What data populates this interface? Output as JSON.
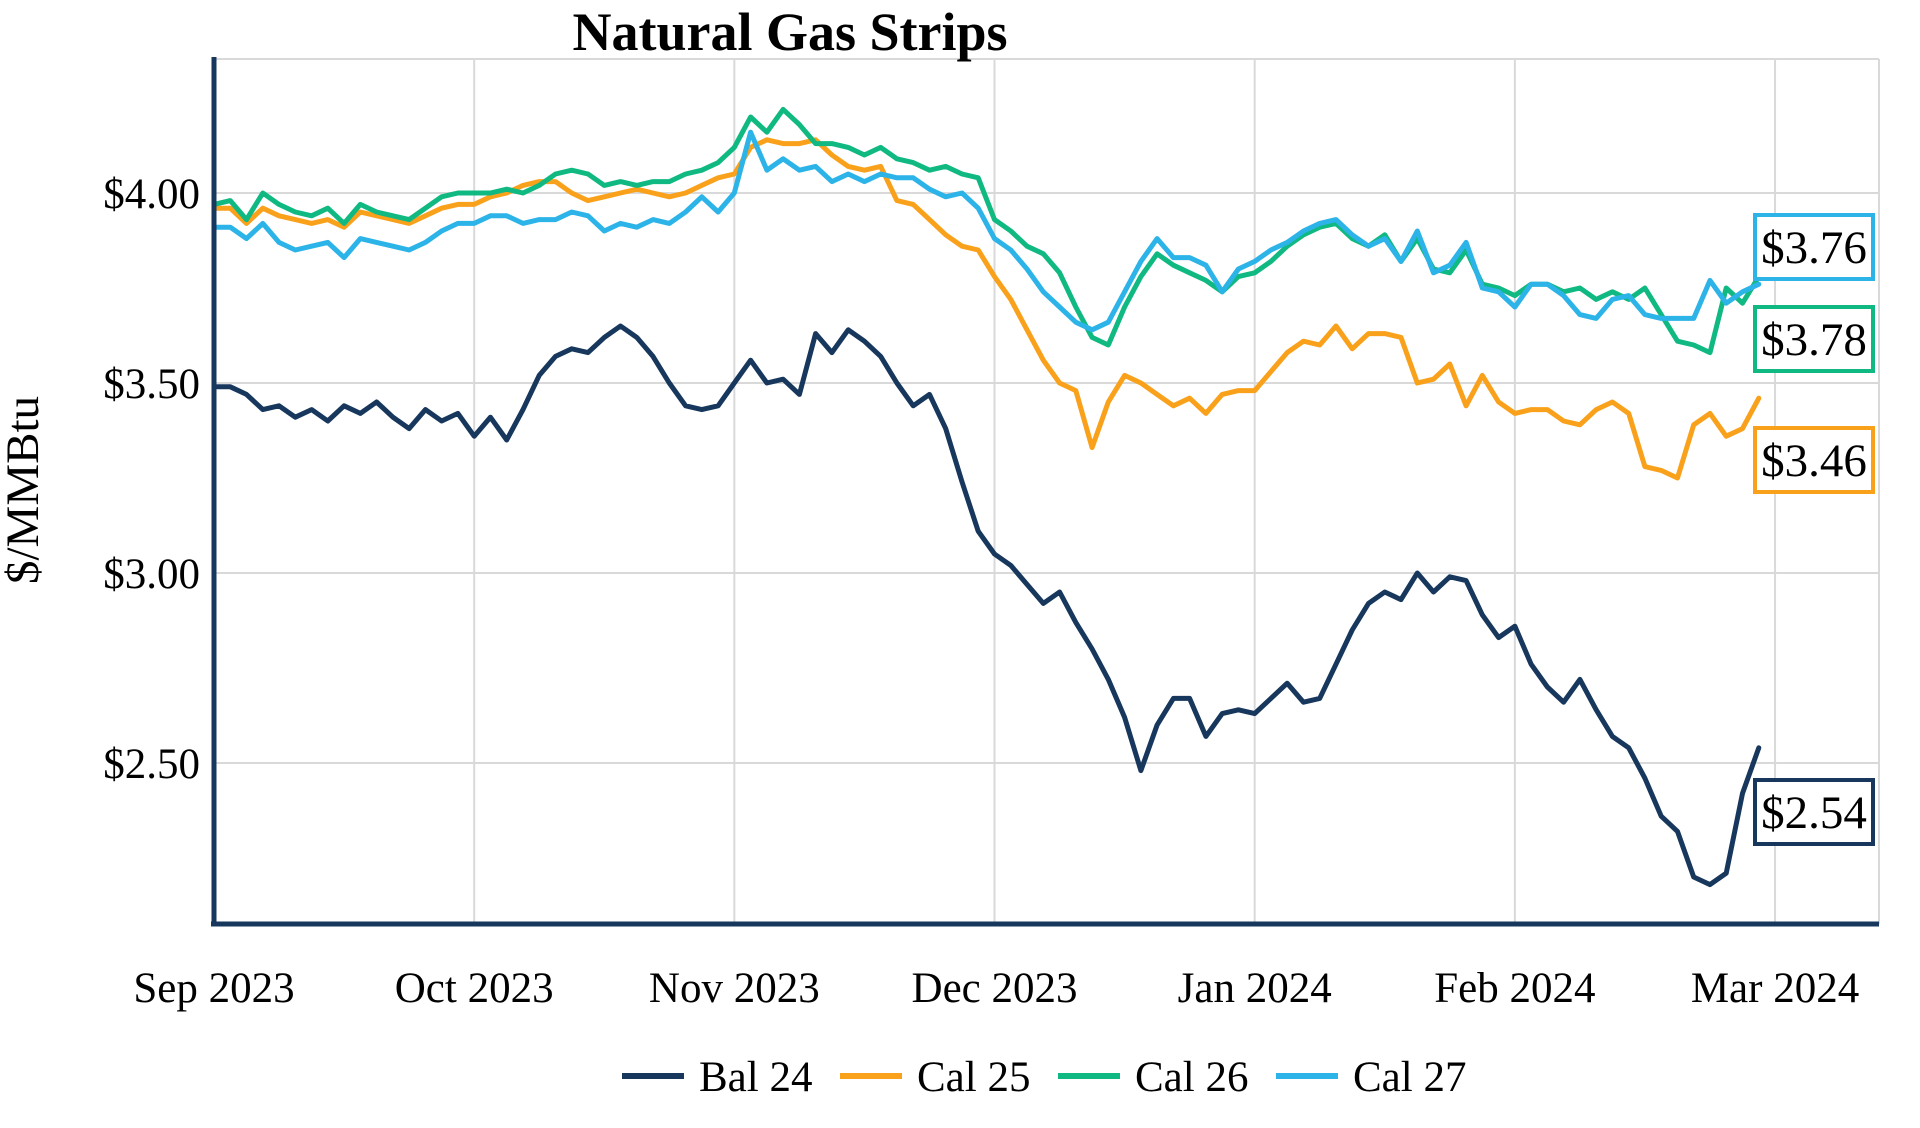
{
  "title": "Natural Gas Strips",
  "y_axis": {
    "title": "$/MMBtu",
    "tick_labels": [
      "$4.00",
      "$3.50",
      "$3.00",
      "$2.50"
    ],
    "tick_values": [
      4.0,
      3.5,
      3.0,
      2.5
    ]
  },
  "x_axis": {
    "tick_labels": [
      "Sep 2023",
      "Oct 2023",
      "Nov 2023",
      "Dec 2023",
      "Jan 2024",
      "Feb 2024",
      "Mar 2024"
    ]
  },
  "colors": {
    "axis": "#17375D",
    "grid": "#D9D9D9",
    "background": "#FFFFFF"
  },
  "chart_data": {
    "type": "line",
    "title": "Natural Gas Strips",
    "ylabel": "$/MMBtu",
    "xlabel": "",
    "x_tick_labels": [
      "Sep 2023",
      "Oct 2023",
      "Nov 2023",
      "Dec 2023",
      "Jan 2024",
      "Feb 2024",
      "Mar 2024"
    ],
    "ylim": [
      2.08,
      4.37
    ],
    "y_ticks": [
      2.5,
      3.0,
      3.5,
      4.0
    ],
    "grid": true,
    "legend_position": "bottom",
    "points_per_month": 16,
    "series": [
      {
        "name": "Bal 24",
        "color": "#17375D",
        "end_label": "$2.54",
        "end_value": 2.54,
        "values": [
          3.49,
          3.49,
          3.47,
          3.43,
          3.44,
          3.41,
          3.43,
          3.4,
          3.44,
          3.42,
          3.45,
          3.41,
          3.38,
          3.43,
          3.4,
          3.42,
          3.36,
          3.41,
          3.35,
          3.43,
          3.52,
          3.57,
          3.59,
          3.58,
          3.62,
          3.65,
          3.62,
          3.57,
          3.5,
          3.44,
          3.43,
          3.44,
          3.5,
          3.56,
          3.5,
          3.51,
          3.47,
          3.63,
          3.58,
          3.64,
          3.61,
          3.57,
          3.5,
          3.44,
          3.47,
          3.38,
          3.24,
          3.11,
          3.05,
          3.02,
          2.97,
          2.92,
          2.95,
          2.87,
          2.8,
          2.72,
          2.62,
          2.48,
          2.6,
          2.67,
          2.67,
          2.57,
          2.63,
          2.64,
          2.63,
          2.67,
          2.71,
          2.66,
          2.67,
          2.76,
          2.85,
          2.92,
          2.95,
          2.93,
          3.0,
          2.95,
          2.99,
          2.98,
          2.89,
          2.83,
          2.86,
          2.76,
          2.7,
          2.66,
          2.72,
          2.64,
          2.57,
          2.54,
          2.46,
          2.36,
          2.32,
          2.2,
          2.18,
          2.21,
          2.42,
          2.54
        ]
      },
      {
        "name": "Cal 25",
        "color": "#F9A11B",
        "end_label": "$3.46",
        "end_value": 3.46,
        "values": [
          3.96,
          3.96,
          3.92,
          3.96,
          3.94,
          3.93,
          3.92,
          3.93,
          3.91,
          3.95,
          3.94,
          3.93,
          3.92,
          3.94,
          3.96,
          3.97,
          3.97,
          3.99,
          4.0,
          4.02,
          4.03,
          4.03,
          4.0,
          3.98,
          3.99,
          4.0,
          4.01,
          4.0,
          3.99,
          4.0,
          4.02,
          4.04,
          4.05,
          4.12,
          4.14,
          4.13,
          4.13,
          4.14,
          4.1,
          4.07,
          4.06,
          4.07,
          3.98,
          3.97,
          3.93,
          3.89,
          3.86,
          3.85,
          3.78,
          3.72,
          3.64,
          3.56,
          3.5,
          3.48,
          3.33,
          3.45,
          3.52,
          3.5,
          3.47,
          3.44,
          3.46,
          3.42,
          3.47,
          3.48,
          3.48,
          3.53,
          3.58,
          3.61,
          3.6,
          3.65,
          3.59,
          3.63,
          3.63,
          3.62,
          3.5,
          3.51,
          3.55,
          3.44,
          3.52,
          3.45,
          3.42,
          3.43,
          3.43,
          3.4,
          3.39,
          3.43,
          3.45,
          3.42,
          3.28,
          3.27,
          3.25,
          3.39,
          3.42,
          3.36,
          3.38,
          3.46
        ]
      },
      {
        "name": "Cal 26",
        "color": "#10B981",
        "end_label": "$3.78",
        "end_value": 3.78,
        "values": [
          3.97,
          3.98,
          3.93,
          4.0,
          3.97,
          3.95,
          3.94,
          3.96,
          3.92,
          3.97,
          3.95,
          3.94,
          3.93,
          3.96,
          3.99,
          4.0,
          4.0,
          4.0,
          4.01,
          4.0,
          4.02,
          4.05,
          4.06,
          4.05,
          4.02,
          4.03,
          4.02,
          4.03,
          4.03,
          4.05,
          4.06,
          4.08,
          4.12,
          4.2,
          4.16,
          4.22,
          4.18,
          4.13,
          4.13,
          4.12,
          4.1,
          4.12,
          4.09,
          4.08,
          4.06,
          4.07,
          4.05,
          4.04,
          3.93,
          3.9,
          3.86,
          3.84,
          3.79,
          3.7,
          3.62,
          3.6,
          3.7,
          3.78,
          3.84,
          3.81,
          3.79,
          3.77,
          3.74,
          3.78,
          3.79,
          3.82,
          3.86,
          3.89,
          3.91,
          3.92,
          3.88,
          3.86,
          3.89,
          3.82,
          3.88,
          3.8,
          3.79,
          3.85,
          3.76,
          3.75,
          3.73,
          3.76,
          3.76,
          3.74,
          3.75,
          3.72,
          3.74,
          3.72,
          3.75,
          3.68,
          3.61,
          3.6,
          3.58,
          3.75,
          3.71,
          3.78
        ]
      },
      {
        "name": "Cal 27",
        "color": "#2CB3E8",
        "end_label": "$3.76",
        "end_value": 3.76,
        "values": [
          3.91,
          3.91,
          3.88,
          3.92,
          3.87,
          3.85,
          3.86,
          3.87,
          3.83,
          3.88,
          3.87,
          3.86,
          3.85,
          3.87,
          3.9,
          3.92,
          3.92,
          3.94,
          3.94,
          3.92,
          3.93,
          3.93,
          3.95,
          3.94,
          3.9,
          3.92,
          3.91,
          3.93,
          3.92,
          3.95,
          3.99,
          3.95,
          4.0,
          4.16,
          4.06,
          4.09,
          4.06,
          4.07,
          4.03,
          4.05,
          4.03,
          4.05,
          4.04,
          4.04,
          4.01,
          3.99,
          4.0,
          3.96,
          3.88,
          3.85,
          3.8,
          3.74,
          3.7,
          3.66,
          3.64,
          3.66,
          3.74,
          3.82,
          3.88,
          3.83,
          3.83,
          3.81,
          3.74,
          3.8,
          3.82,
          3.85,
          3.87,
          3.9,
          3.92,
          3.93,
          3.89,
          3.86,
          3.88,
          3.82,
          3.9,
          3.79,
          3.81,
          3.87,
          3.75,
          3.74,
          3.7,
          3.76,
          3.76,
          3.73,
          3.68,
          3.67,
          3.72,
          3.73,
          3.68,
          3.67,
          3.67,
          3.67,
          3.77,
          3.71,
          3.74,
          3.76
        ]
      }
    ]
  }
}
